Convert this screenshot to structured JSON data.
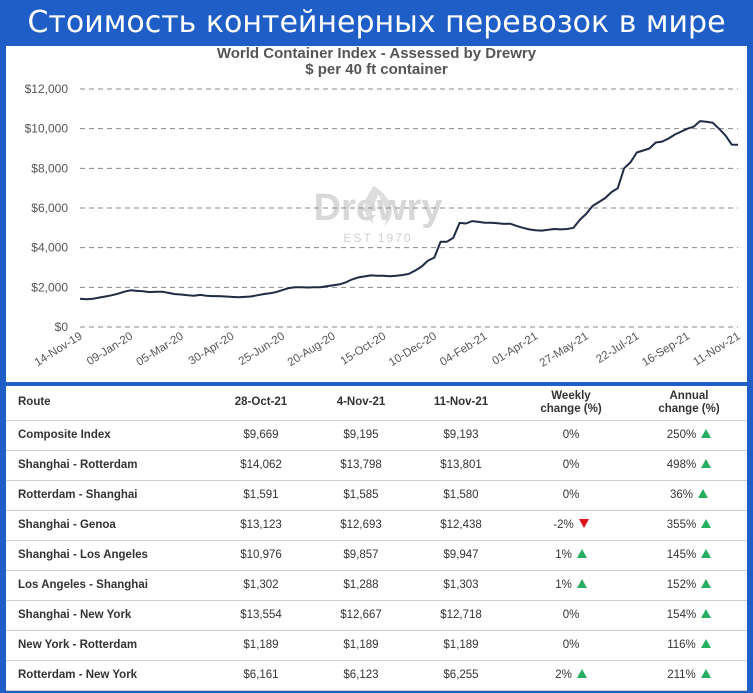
{
  "banner": {
    "title": "Стоимость контейнерных перевозок в мире"
  },
  "watermark": {
    "name": "Drewry",
    "est": "EST 1970"
  },
  "colors": {
    "banner_bg": "#1f5ec6",
    "line": "#1f2a44",
    "up": "#27ae60",
    "down": "#d9141b",
    "grid": "#8a8a8a"
  },
  "chart_data": {
    "type": "line",
    "title": "World Container Index - Assessed by Drewry",
    "subtitle": "$ per 40 ft container",
    "ylim": [
      0,
      12000
    ],
    "yticks": [
      "$0",
      "$2,000",
      "$4,000",
      "$6,000",
      "$8,000",
      "$10,000",
      "$12,000"
    ],
    "xtick_labels": [
      "14-Nov-19",
      "09-Jan-20",
      "05-Mar-20",
      "30-Apr-20",
      "25-Jun-20",
      "20-Aug-20",
      "15-Oct-20",
      "10-Dec-20",
      "04-Feb-21",
      "01-Apr-21",
      "27-May-21",
      "22-Jul-21",
      "16-Sep-21",
      "11-Nov-21"
    ],
    "grid": "horizontal dashed",
    "series": [
      {
        "x": [
          "14-Nov-19",
          "21-Nov-19",
          "28-Nov-19",
          "05-Dec-19",
          "12-Dec-19",
          "19-Dec-19",
          "26-Dec-19",
          "02-Jan-20",
          "09-Jan-20",
          "16-Jan-20",
          "23-Jan-20",
          "30-Jan-20",
          "06-Feb-20",
          "13-Feb-20",
          "20-Feb-20",
          "27-Feb-20",
          "05-Mar-20",
          "12-Mar-20",
          "19-Mar-20",
          "26-Mar-20",
          "02-Apr-20",
          "09-Apr-20",
          "16-Apr-20",
          "23-Apr-20",
          "30-Apr-20",
          "07-May-20",
          "14-May-20",
          "21-May-20",
          "28-May-20",
          "04-Jun-20",
          "11-Jun-20",
          "18-Jun-20",
          "25-Jun-20",
          "02-Jul-20",
          "09-Jul-20",
          "16-Jul-20",
          "23-Jul-20",
          "30-Jul-20",
          "06-Aug-20",
          "13-Aug-20",
          "20-Aug-20",
          "27-Aug-20",
          "03-Sep-20",
          "10-Sep-20",
          "17-Sep-20",
          "24-Sep-20",
          "01-Oct-20",
          "08-Oct-20",
          "15-Oct-20",
          "22-Oct-20",
          "29-Oct-20",
          "05-Nov-20",
          "12-Nov-20",
          "19-Nov-20",
          "26-Nov-20",
          "03-Dec-20",
          "10-Dec-20",
          "17-Dec-20",
          "24-Dec-20",
          "31-Dec-20",
          "07-Jan-21",
          "14-Jan-21",
          "21-Jan-21",
          "28-Jan-21",
          "04-Feb-21",
          "11-Feb-21",
          "18-Feb-21",
          "25-Feb-21",
          "04-Mar-21",
          "11-Mar-21",
          "18-Mar-21",
          "25-Mar-21",
          "01-Apr-21",
          "08-Apr-21",
          "15-Apr-21",
          "22-Apr-21",
          "29-Apr-21",
          "06-May-21",
          "13-May-21",
          "20-May-21",
          "27-May-21",
          "03-Jun-21",
          "10-Jun-21",
          "17-Jun-21",
          "24-Jun-21",
          "01-Jul-21",
          "08-Jul-21",
          "15-Jul-21",
          "22-Jul-21",
          "29-Jul-21",
          "05-Aug-21",
          "12-Aug-21",
          "19-Aug-21",
          "26-Aug-21",
          "02-Sep-21",
          "09-Sep-21",
          "16-Sep-21",
          "23-Sep-21",
          "30-Sep-21",
          "07-Oct-21",
          "14-Oct-21",
          "21-Oct-21",
          "28-Oct-21",
          "04-Nov-21",
          "11-Nov-21"
        ],
        "values": [
          1420,
          1400,
          1420,
          1480,
          1540,
          1600,
          1680,
          1780,
          1850,
          1820,
          1800,
          1760,
          1780,
          1780,
          1720,
          1660,
          1640,
          1600,
          1580,
          1620,
          1580,
          1560,
          1560,
          1540,
          1520,
          1500,
          1520,
          1540,
          1600,
          1660,
          1700,
          1760,
          1860,
          1960,
          2000,
          2000,
          1990,
          2000,
          2000,
          2050,
          2100,
          2150,
          2250,
          2400,
          2500,
          2550,
          2600,
          2580,
          2580,
          2560,
          2580,
          2620,
          2680,
          2850,
          3050,
          3350,
          3500,
          4300,
          4300,
          4500,
          5250,
          5220,
          5340,
          5300,
          5260,
          5260,
          5230,
          5200,
          5210,
          5100,
          5000,
          4920,
          4880,
          4860,
          4900,
          4940,
          4920,
          4940,
          5000,
          5400,
          5700,
          6100,
          6300,
          6500,
          6800,
          7000,
          8000,
          8300,
          8800,
          8900,
          9000,
          9300,
          9350,
          9500,
          9700,
          9850,
          10000,
          10100,
          10380,
          10350,
          10300,
          10000,
          9669,
          9195,
          9193
        ]
      }
    ]
  },
  "table": {
    "headers": {
      "route": "Route",
      "d1": "28-Oct-21",
      "d2": "4-Nov-21",
      "d3": "11-Nov-21",
      "weekly_1": "Weekly",
      "weekly_2": "change (%)",
      "annual_1": "Annual",
      "annual_2": "change (%)"
    },
    "rows": [
      {
        "route": "Composite Index",
        "d1": "$9,669",
        "d2": "$9,195",
        "d3": "$9,193",
        "weekly": "0%",
        "weekly_dir": "none",
        "annual": "250%",
        "annual_dir": "up"
      },
      {
        "route": "Shanghai - Rotterdam",
        "d1": "$14,062",
        "d2": "$13,798",
        "d3": "$13,801",
        "weekly": "0%",
        "weekly_dir": "none",
        "annual": "498%",
        "annual_dir": "up"
      },
      {
        "route": "Rotterdam - Shanghai",
        "d1": "$1,591",
        "d2": "$1,585",
        "d3": "$1,580",
        "weekly": "0%",
        "weekly_dir": "none",
        "annual": "36%",
        "annual_dir": "up"
      },
      {
        "route": "Shanghai - Genoa",
        "d1": "$13,123",
        "d2": "$12,693",
        "d3": "$12,438",
        "weekly": "-2%",
        "weekly_dir": "down",
        "annual": "355%",
        "annual_dir": "up"
      },
      {
        "route": "Shanghai - Los Angeles",
        "d1": "$10,976",
        "d2": "$9,857",
        "d3": "$9,947",
        "weekly": "1%",
        "weekly_dir": "up",
        "annual": "145%",
        "annual_dir": "up"
      },
      {
        "route": "Los Angeles - Shanghai",
        "d1": "$1,302",
        "d2": "$1,288",
        "d3": "$1,303",
        "weekly": "1%",
        "weekly_dir": "up",
        "annual": "152%",
        "annual_dir": "up"
      },
      {
        "route": "Shanghai - New York",
        "d1": "$13,554",
        "d2": "$12,667",
        "d3": "$12,718",
        "weekly": "0%",
        "weekly_dir": "none",
        "annual": "154%",
        "annual_dir": "up"
      },
      {
        "route": "New York - Rotterdam",
        "d1": "$1,189",
        "d2": "$1,189",
        "d3": "$1,189",
        "weekly": "0%",
        "weekly_dir": "none",
        "annual": "116%",
        "annual_dir": "up"
      },
      {
        "route": "Rotterdam - New York",
        "d1": "$6,161",
        "d2": "$6,123",
        "d3": "$6,255",
        "weekly": "2%",
        "weekly_dir": "up",
        "annual": "211%",
        "annual_dir": "up"
      }
    ]
  }
}
